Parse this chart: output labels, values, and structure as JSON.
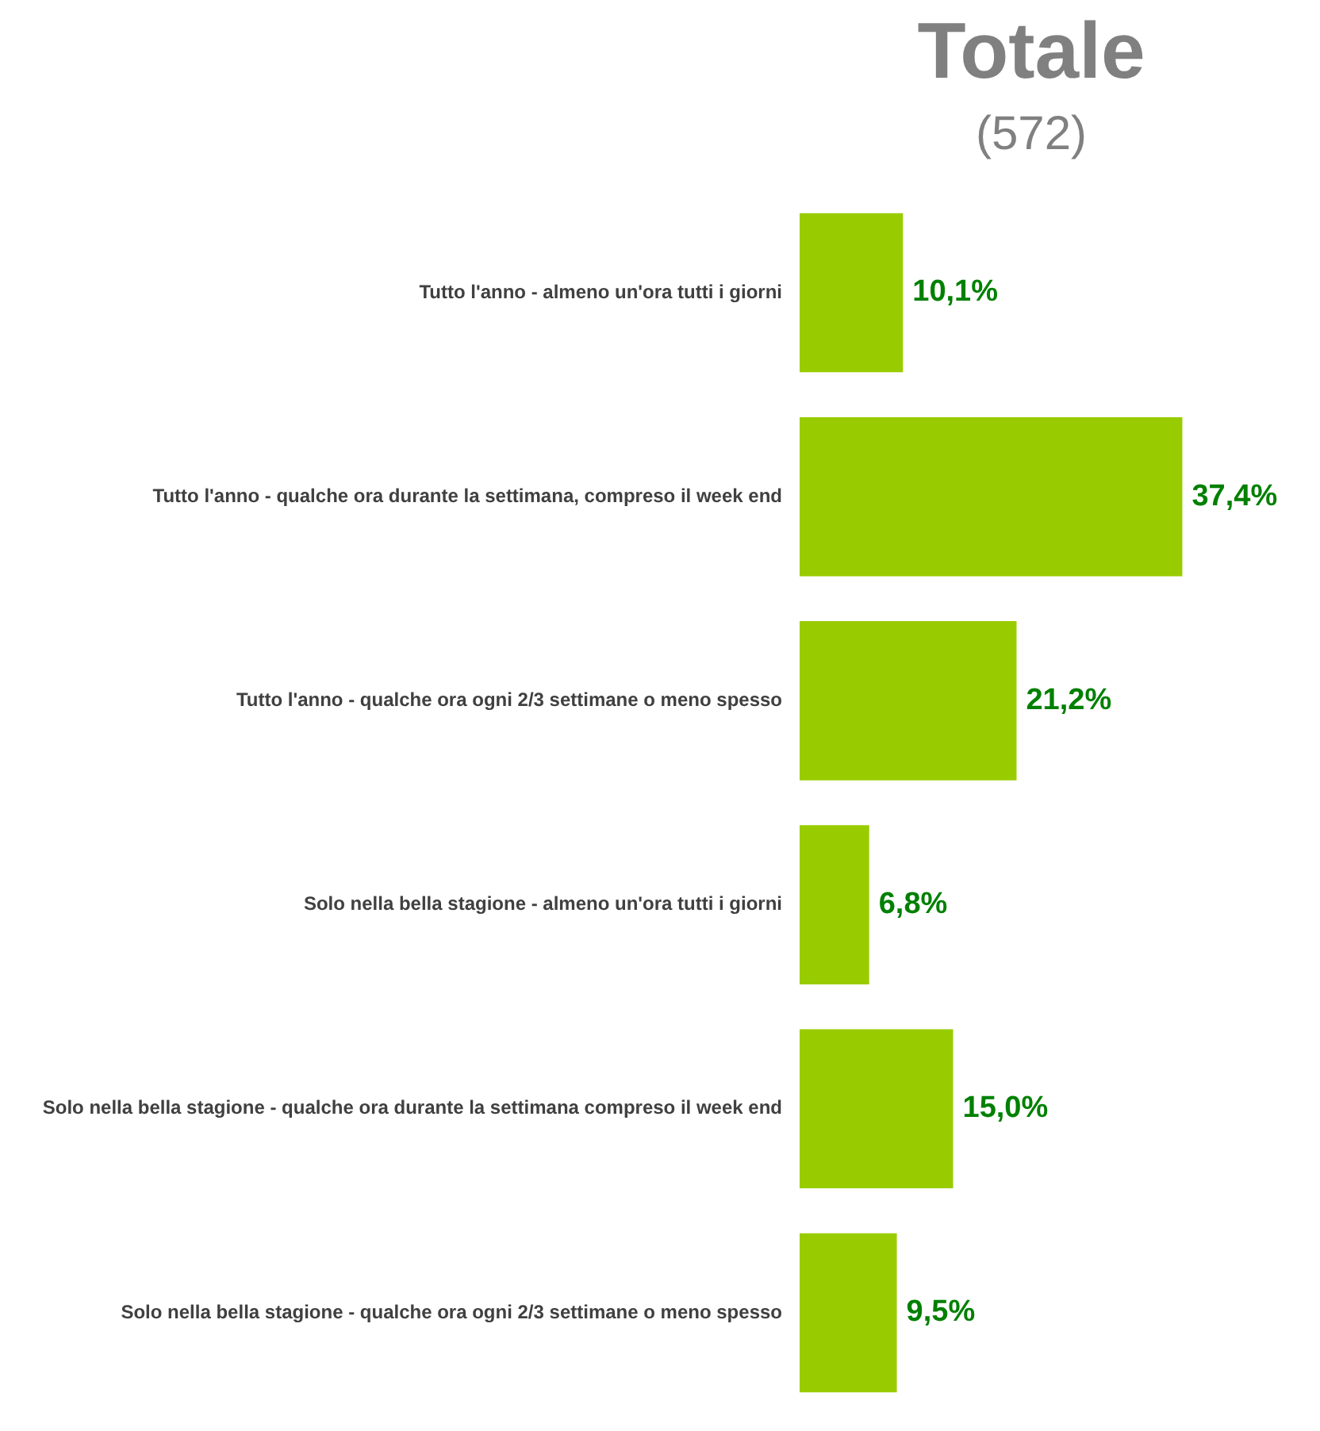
{
  "chart_data": {
    "type": "bar",
    "orientation": "horizontal",
    "title": "Totale",
    "subtitle": "(572)",
    "categories": [
      "Tutto l'anno - almeno un'ora tutti i giorni",
      "Tutto l'anno - qualche ora durante la settimana, compreso il week end",
      "Tutto l'anno - qualche ora ogni 2/3 settimane o meno spesso",
      "Solo nella bella stagione - almeno un'ora tutti i giorni",
      "Solo nella bella stagione - qualche ora durante la settimana compreso il week end",
      "Solo nella bella stagione - qualche ora ogni 2/3 settimane o meno spesso"
    ],
    "values": [
      10.1,
      37.4,
      21.2,
      6.8,
      15.0,
      9.5
    ],
    "value_labels": [
      "10,1%",
      "37,4%",
      "21,2%",
      "6,8%",
      "15,0%",
      "9,5%"
    ],
    "color": "#99cc00",
    "tick_labels": "y"
  }
}
